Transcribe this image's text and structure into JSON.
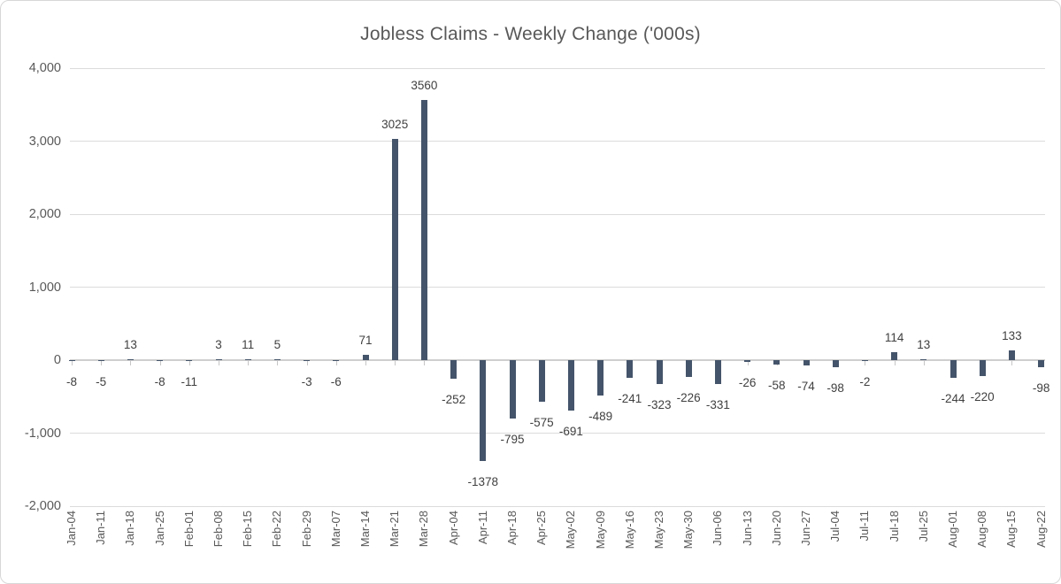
{
  "chart_data": {
    "type": "bar",
    "title": "Jobless Claims - Weekly Change ('000s)",
    "xlabel": "",
    "ylabel": "",
    "categories": [
      "Jan-04",
      "Jan-11",
      "Jan-18",
      "Jan-25",
      "Feb-01",
      "Feb-08",
      "Feb-15",
      "Feb-22",
      "Feb-29",
      "Mar-07",
      "Mar-14",
      "Mar-21",
      "Mar-28",
      "Apr-04",
      "Apr-11",
      "Apr-18",
      "Apr-25",
      "May-02",
      "May-09",
      "May-16",
      "May-23",
      "May-30",
      "Jun-06",
      "Jun-13",
      "Jun-20",
      "Jun-27",
      "Jul-04",
      "Jul-11",
      "Jul-18",
      "Jul-25",
      "Aug-01",
      "Aug-08",
      "Aug-15",
      "Aug-22"
    ],
    "values": [
      -8,
      -5,
      13,
      -8,
      -11,
      3,
      11,
      5,
      -3,
      -6,
      71,
      3025,
      3560,
      -252,
      -1378,
      -795,
      -575,
      -691,
      -489,
      -241,
      -323,
      -226,
      -331,
      -26,
      -58,
      -74,
      -98,
      -2,
      114,
      13,
      -244,
      -220,
      133,
      -98
    ],
    "data_labels": [
      "-8",
      "-5",
      "13",
      "-8",
      "-11",
      "3",
      "11",
      "5",
      "-3",
      "-6",
      "71",
      "3025",
      "3560",
      "-252",
      "-1378",
      "-795",
      "-575",
      "-691",
      "-489",
      "-241",
      "-323",
      "-226",
      "-331",
      "-26",
      "-58",
      "-74",
      "-98",
      "-2",
      "114",
      "13",
      "-244",
      "-220",
      "133",
      "-98"
    ],
    "ylim": [
      -2000,
      4000
    ],
    "yticks": [
      {
        "label": "4,000",
        "value": 4000
      },
      {
        "label": "3,000",
        "value": 3000
      },
      {
        "label": "2,000",
        "value": 2000
      },
      {
        "label": "1,000",
        "value": 1000
      },
      {
        "label": "0",
        "value": 0
      },
      {
        "label": "-1,000",
        "value": -1000
      },
      {
        "label": "-2,000",
        "value": -2000
      }
    ],
    "grid": true,
    "legend_position": "none",
    "data_label_position": "outside-end",
    "bar_color": "#44546a",
    "title_color": "#595959",
    "axis_text_color": "#595959",
    "data_label_color": "#404040",
    "gridline_color": "#dcdcdc"
  }
}
